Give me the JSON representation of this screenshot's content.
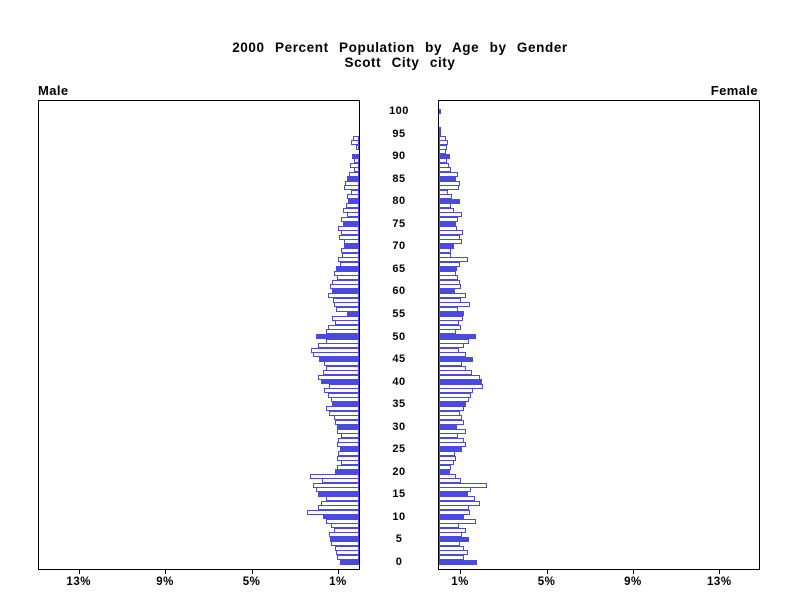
{
  "title": {
    "line1": "2000 Percent Population by Age by Gender",
    "line2": "Scott City city"
  },
  "panel_labels": {
    "male": "Male",
    "female": "Female"
  },
  "axis": {
    "age_tick_step": 5,
    "age_tick_labels": [
      "0",
      "5",
      "10",
      "15",
      "20",
      "25",
      "30",
      "35",
      "40",
      "45",
      "50",
      "55",
      "60",
      "65",
      "70",
      "75",
      "80",
      "85",
      "90",
      "95",
      "100"
    ],
    "pct_ticks": [
      1,
      5,
      9,
      13
    ],
    "male_pct_tick_labels": [
      "1%",
      "5%",
      "9%",
      "13%"
    ],
    "female_pct_tick_labels": [
      "1%",
      "5%",
      "9%",
      "13%"
    ]
  },
  "colors": {
    "bar_blue": "#4a4ade",
    "text": "#000000",
    "background": "#ffffff"
  },
  "chart_data": {
    "type": "bar",
    "variant": "population-pyramid",
    "title": "2000 Percent Population by Age by Gender",
    "subtitle": "Scott City city",
    "x_unit": "percent of total population",
    "age_start": 0,
    "age_end": 100,
    "xlim_each_side": [
      0,
      15
    ],
    "grid": false,
    "legend": "none",
    "style_note": "one horizontal bar per single year of age; ages divisible by 5 are solid filled blue, other ages are white with blue outline; male bars extend left from center, female bars extend right",
    "series": [
      {
        "name": "Male",
        "values": [
          0.9,
          1.03,
          1.08,
          1.12,
          1.28,
          1.34,
          1.38,
          1.18,
          1.28,
          1.54,
          1.65,
          2.4,
          1.9,
          1.75,
          1.55,
          1.9,
          2.0,
          2.15,
          1.7,
          2.25,
          1.12,
          1.03,
          0.85,
          1.0,
          0.95,
          0.89,
          1.0,
          0.95,
          0.85,
          1.0,
          1.04,
          1.11,
          1.15,
          1.38,
          1.51,
          1.23,
          1.31,
          1.42,
          1.62,
          1.38,
          1.77,
          1.88,
          1.69,
          1.51,
          1.62,
          1.85,
          2.15,
          2.23,
          1.92,
          1.54,
          2.0,
          1.54,
          1.42,
          1.11,
          1.23,
          0.55,
          1.08,
          1.15,
          1.2,
          1.42,
          1.26,
          1.35,
          1.26,
          1.0,
          1.18,
          1.05,
          0.89,
          0.95,
          0.8,
          0.85,
          0.7,
          0.69,
          0.92,
          0.84,
          0.95,
          0.72,
          0.84,
          0.57,
          0.74,
          0.61,
          0.49,
          0.57,
          0.35,
          0.69,
          0.65,
          0.54,
          0.46,
          0.23,
          0.43,
          0.23,
          0.31,
          0,
          0.14,
          0.38,
          0.26,
          0,
          0,
          0,
          0,
          0,
          0
        ]
      },
      {
        "name": "Female",
        "values": [
          1.78,
          1.18,
          1.34,
          1.14,
          0.95,
          1.38,
          1.08,
          1.23,
          0.92,
          1.69,
          1.14,
          1.42,
          1.38,
          1.88,
          1.65,
          1.34,
          1.49,
          2.22,
          1.03,
          0.77,
          0.52,
          0.57,
          0.68,
          0.8,
          0.72,
          1.08,
          1.26,
          1.18,
          0.88,
          1.23,
          0.83,
          1.18,
          1.08,
          0.95,
          1.18,
          1.26,
          1.38,
          1.49,
          1.57,
          2.06,
          2.0,
          1.88,
          1.54,
          1.26,
          1.08,
          1.57,
          1.26,
          0.92,
          1.18,
          1.38,
          1.72,
          0.8,
          1.03,
          0.92,
          1.11,
          1.18,
          0.88,
          1.42,
          1.03,
          1.26,
          0.72,
          1.03,
          0.98,
          0.88,
          0.8,
          0.83,
          0.95,
          1.34,
          0.57,
          0.55,
          0.68,
          1.08,
          0.95,
          1.11,
          0.83,
          0.77,
          0.88,
          1.08,
          0.68,
          0.57,
          0.98,
          0.6,
          0.42,
          0.92,
          0.95,
          0.77,
          0.88,
          0.57,
          0.46,
          0.37,
          0.52,
          0.31,
          0.37,
          0.42,
          0.31,
          0.08,
          0.06,
          0,
          0,
          0,
          0.08
        ]
      }
    ]
  }
}
